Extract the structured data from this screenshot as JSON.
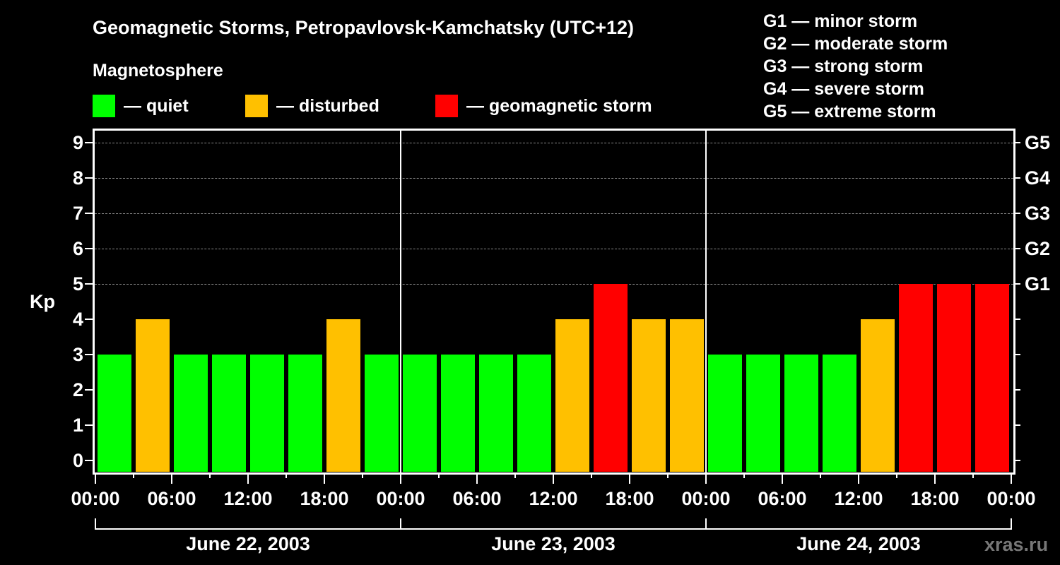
{
  "header": {
    "title": "Geomagnetic Storms, Petropavlovsk-Kamchatsky (UTC+12)",
    "subtitle": "Magnetosphere"
  },
  "legend": [
    {
      "label": "— quiet",
      "color": "#00ff00"
    },
    {
      "label": "— disturbed",
      "color": "#ffc000"
    },
    {
      "label": "— geomagnetic storm",
      "color": "#ff0000"
    }
  ],
  "g_scale": [
    "G1 — minor storm",
    "G2 — moderate storm",
    "G3 — strong storm",
    "G4 — severe storm",
    "G5 — extreme storm"
  ],
  "axes": {
    "ylabel": "Kp",
    "yticks": [
      "0",
      "1",
      "2",
      "3",
      "4",
      "5",
      "6",
      "7",
      "8",
      "9"
    ],
    "right_ticks": [
      {
        "kp": 5,
        "label": "G1"
      },
      {
        "kp": 6,
        "label": "G2"
      },
      {
        "kp": 7,
        "label": "G3"
      },
      {
        "kp": 8,
        "label": "G4"
      },
      {
        "kp": 9,
        "label": "G5"
      }
    ],
    "xticks": [
      "00:00",
      "06:00",
      "12:00",
      "18:00",
      "00:00",
      "06:00",
      "12:00",
      "18:00",
      "00:00",
      "06:00",
      "12:00",
      "18:00",
      "00:00"
    ],
    "days": [
      "June 22, 2003",
      "June 23, 2003",
      "June 24, 2003"
    ]
  },
  "credit": "xras.ru",
  "colors": {
    "quiet": "#00ff00",
    "disturbed": "#ffc000",
    "storm": "#ff0000",
    "grid": "#888888",
    "background": "#000000"
  },
  "chart_data": {
    "type": "bar",
    "title": "Geomagnetic Storms, Petropavlovsk-Kamchatsky (UTC+12)",
    "xlabel": "",
    "ylabel": "Kp",
    "ylim": [
      0,
      9
    ],
    "grid": true,
    "interval_hours": 3,
    "categories": [
      "June 22 00:00",
      "June 22 03:00",
      "June 22 06:00",
      "June 22 09:00",
      "June 22 12:00",
      "June 22 15:00",
      "June 22 18:00",
      "June 22 21:00",
      "June 23 00:00",
      "June 23 03:00",
      "June 23 06:00",
      "June 23 09:00",
      "June 23 12:00",
      "June 23 15:00",
      "June 23 18:00",
      "June 23 21:00",
      "June 24 00:00",
      "June 24 03:00",
      "June 24 06:00",
      "June 24 09:00",
      "June 24 12:00",
      "June 24 15:00",
      "June 24 18:00",
      "June 24 21:00"
    ],
    "values": [
      3,
      4,
      3,
      3,
      3,
      3,
      4,
      3,
      3,
      3,
      3,
      3,
      4,
      5,
      4,
      4,
      3,
      3,
      3,
      3,
      4,
      5,
      5,
      5
    ],
    "status": [
      "quiet",
      "disturbed",
      "quiet",
      "quiet",
      "quiet",
      "quiet",
      "disturbed",
      "quiet",
      "quiet",
      "quiet",
      "quiet",
      "quiet",
      "disturbed",
      "storm",
      "disturbed",
      "disturbed",
      "quiet",
      "quiet",
      "quiet",
      "quiet",
      "disturbed",
      "storm",
      "storm",
      "storm"
    ],
    "legend": [
      "quiet",
      "disturbed",
      "geomagnetic storm"
    ],
    "right_axis": {
      "5": "G1",
      "6": "G2",
      "7": "G3",
      "8": "G4",
      "9": "G5"
    }
  }
}
